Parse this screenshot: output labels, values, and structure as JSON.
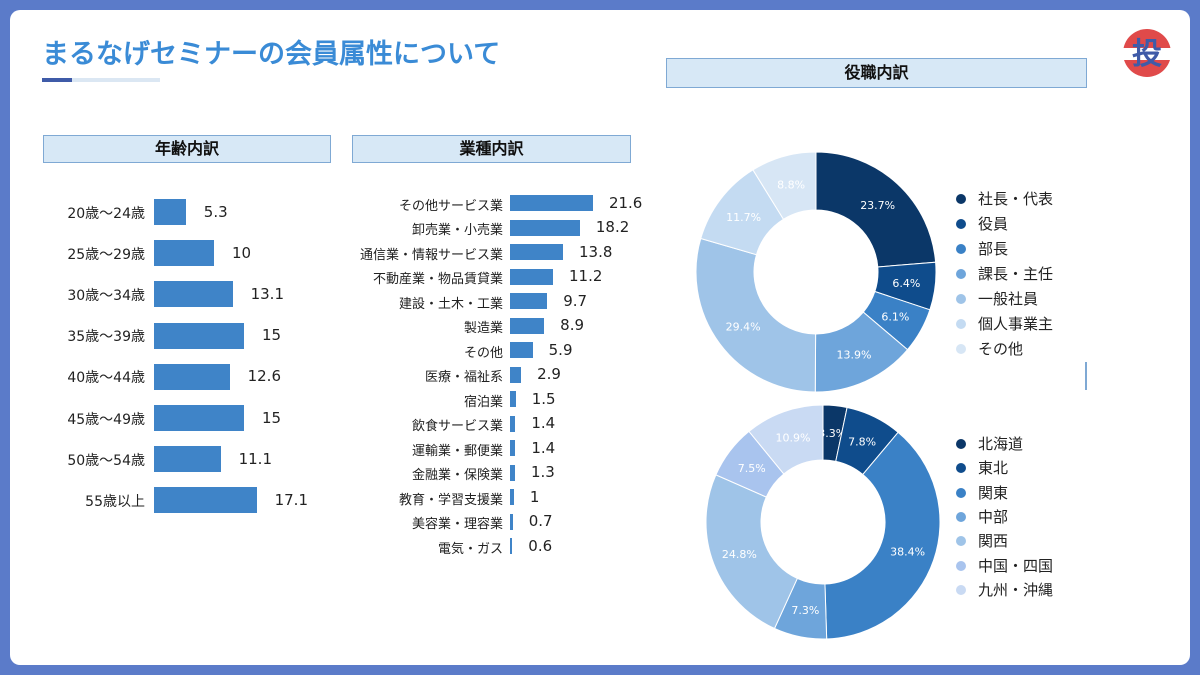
{
  "title": "まるなげセミナーの会員属性について",
  "logo": {
    "icon": "logo-mark",
    "text": "投"
  },
  "age_header": "年齢内訳",
  "industry_header": "業種内訳",
  "role_header": "役職内訳",
  "colors": {
    "bar": "#3f84c8",
    "header_bg": "#d7e8f6",
    "title": "#3a8bd6",
    "palette": [
      "#0b3768",
      "#0f4c8c",
      "#3a81c6",
      "#6ea5db",
      "#9fc4e8",
      "#c4dbf2",
      "#d7e6f5"
    ]
  },
  "chart_data": [
    {
      "type": "bar",
      "orientation": "horizontal",
      "title": "年齢内訳",
      "categories": [
        "20歳〜24歳",
        "25歳〜29歳",
        "30歳〜34歳",
        "35歳〜39歳",
        "40歳〜44歳",
        "45歳〜49歳",
        "50歳〜54歳",
        "55歳以上"
      ],
      "values": [
        5.3,
        10,
        13.1,
        15,
        12.6,
        15,
        11.1,
        17.1
      ],
      "value_labels": [
        "5.3",
        "10",
        "13.1",
        "15",
        "12.6",
        "15",
        "11.1",
        "17.1"
      ],
      "xlim": [
        0,
        20
      ]
    },
    {
      "type": "bar",
      "orientation": "horizontal",
      "title": "業種内訳",
      "categories": [
        "その他サービス業",
        "卸売業・小売業",
        "通信業・情報サービス業",
        "不動産業・物品賃貸業",
        "建設・土木・工業",
        "製造業",
        "その他",
        "医療・福祉系",
        "宿泊業",
        "飲食サービス業",
        "運輸業・郵便業",
        "金融業・保険業",
        "教育・学習支援業",
        "美容業・理容業",
        "電気・ガス"
      ],
      "values": [
        21.6,
        18.2,
        13.8,
        11.2,
        9.7,
        8.9,
        5.9,
        2.9,
        1.5,
        1.4,
        1.4,
        1.3,
        1,
        0.7,
        0.6
      ],
      "value_labels": [
        "21.6",
        "18.2",
        "13.8",
        "11.2",
        "9.7",
        "8.9",
        "5.9",
        "2.9",
        "1.5",
        "1.4",
        "1.4",
        "1.3",
        "1",
        "0.7",
        "0.6"
      ],
      "xlim": [
        0,
        25
      ]
    },
    {
      "type": "pie",
      "donut": true,
      "title": "役職内訳",
      "labels": [
        "社長・代表",
        "役員",
        "部長",
        "課長・主任",
        "一般社員",
        "個人事業主",
        "その他"
      ],
      "values": [
        23.7,
        6.4,
        6.1,
        13.9,
        29.4,
        11.7,
        8.8
      ],
      "value_labels": [
        "23.7%",
        "6.4%",
        "6.1%",
        "13.9%",
        "29.4%",
        "11.7%",
        "8.8%"
      ],
      "colors": [
        "#0b3768",
        "#0f4c8c",
        "#3a81c6",
        "#6ea5db",
        "#9fc4e8",
        "#c4dbf2",
        "#d7e6f5"
      ],
      "legend": "right"
    },
    {
      "type": "pie",
      "donut": true,
      "title": "",
      "labels": [
        "北海道",
        "東北",
        "関東",
        "中部",
        "関西",
        "中国・四国",
        "九州・沖縄"
      ],
      "values": [
        3.3,
        7.8,
        38.4,
        7.3,
        24.8,
        7.5,
        10.9
      ],
      "value_labels": [
        "3.3%",
        "7.8%",
        "38.4%",
        "7.3%",
        "24.8%",
        "7.5%",
        "10.9%"
      ],
      "colors": [
        "#0b3768",
        "#0f4c8c",
        "#3a81c6",
        "#6ea5db",
        "#9fc4e8",
        "#a9c4ee",
        "#c9daf3"
      ],
      "legend": "right"
    }
  ]
}
